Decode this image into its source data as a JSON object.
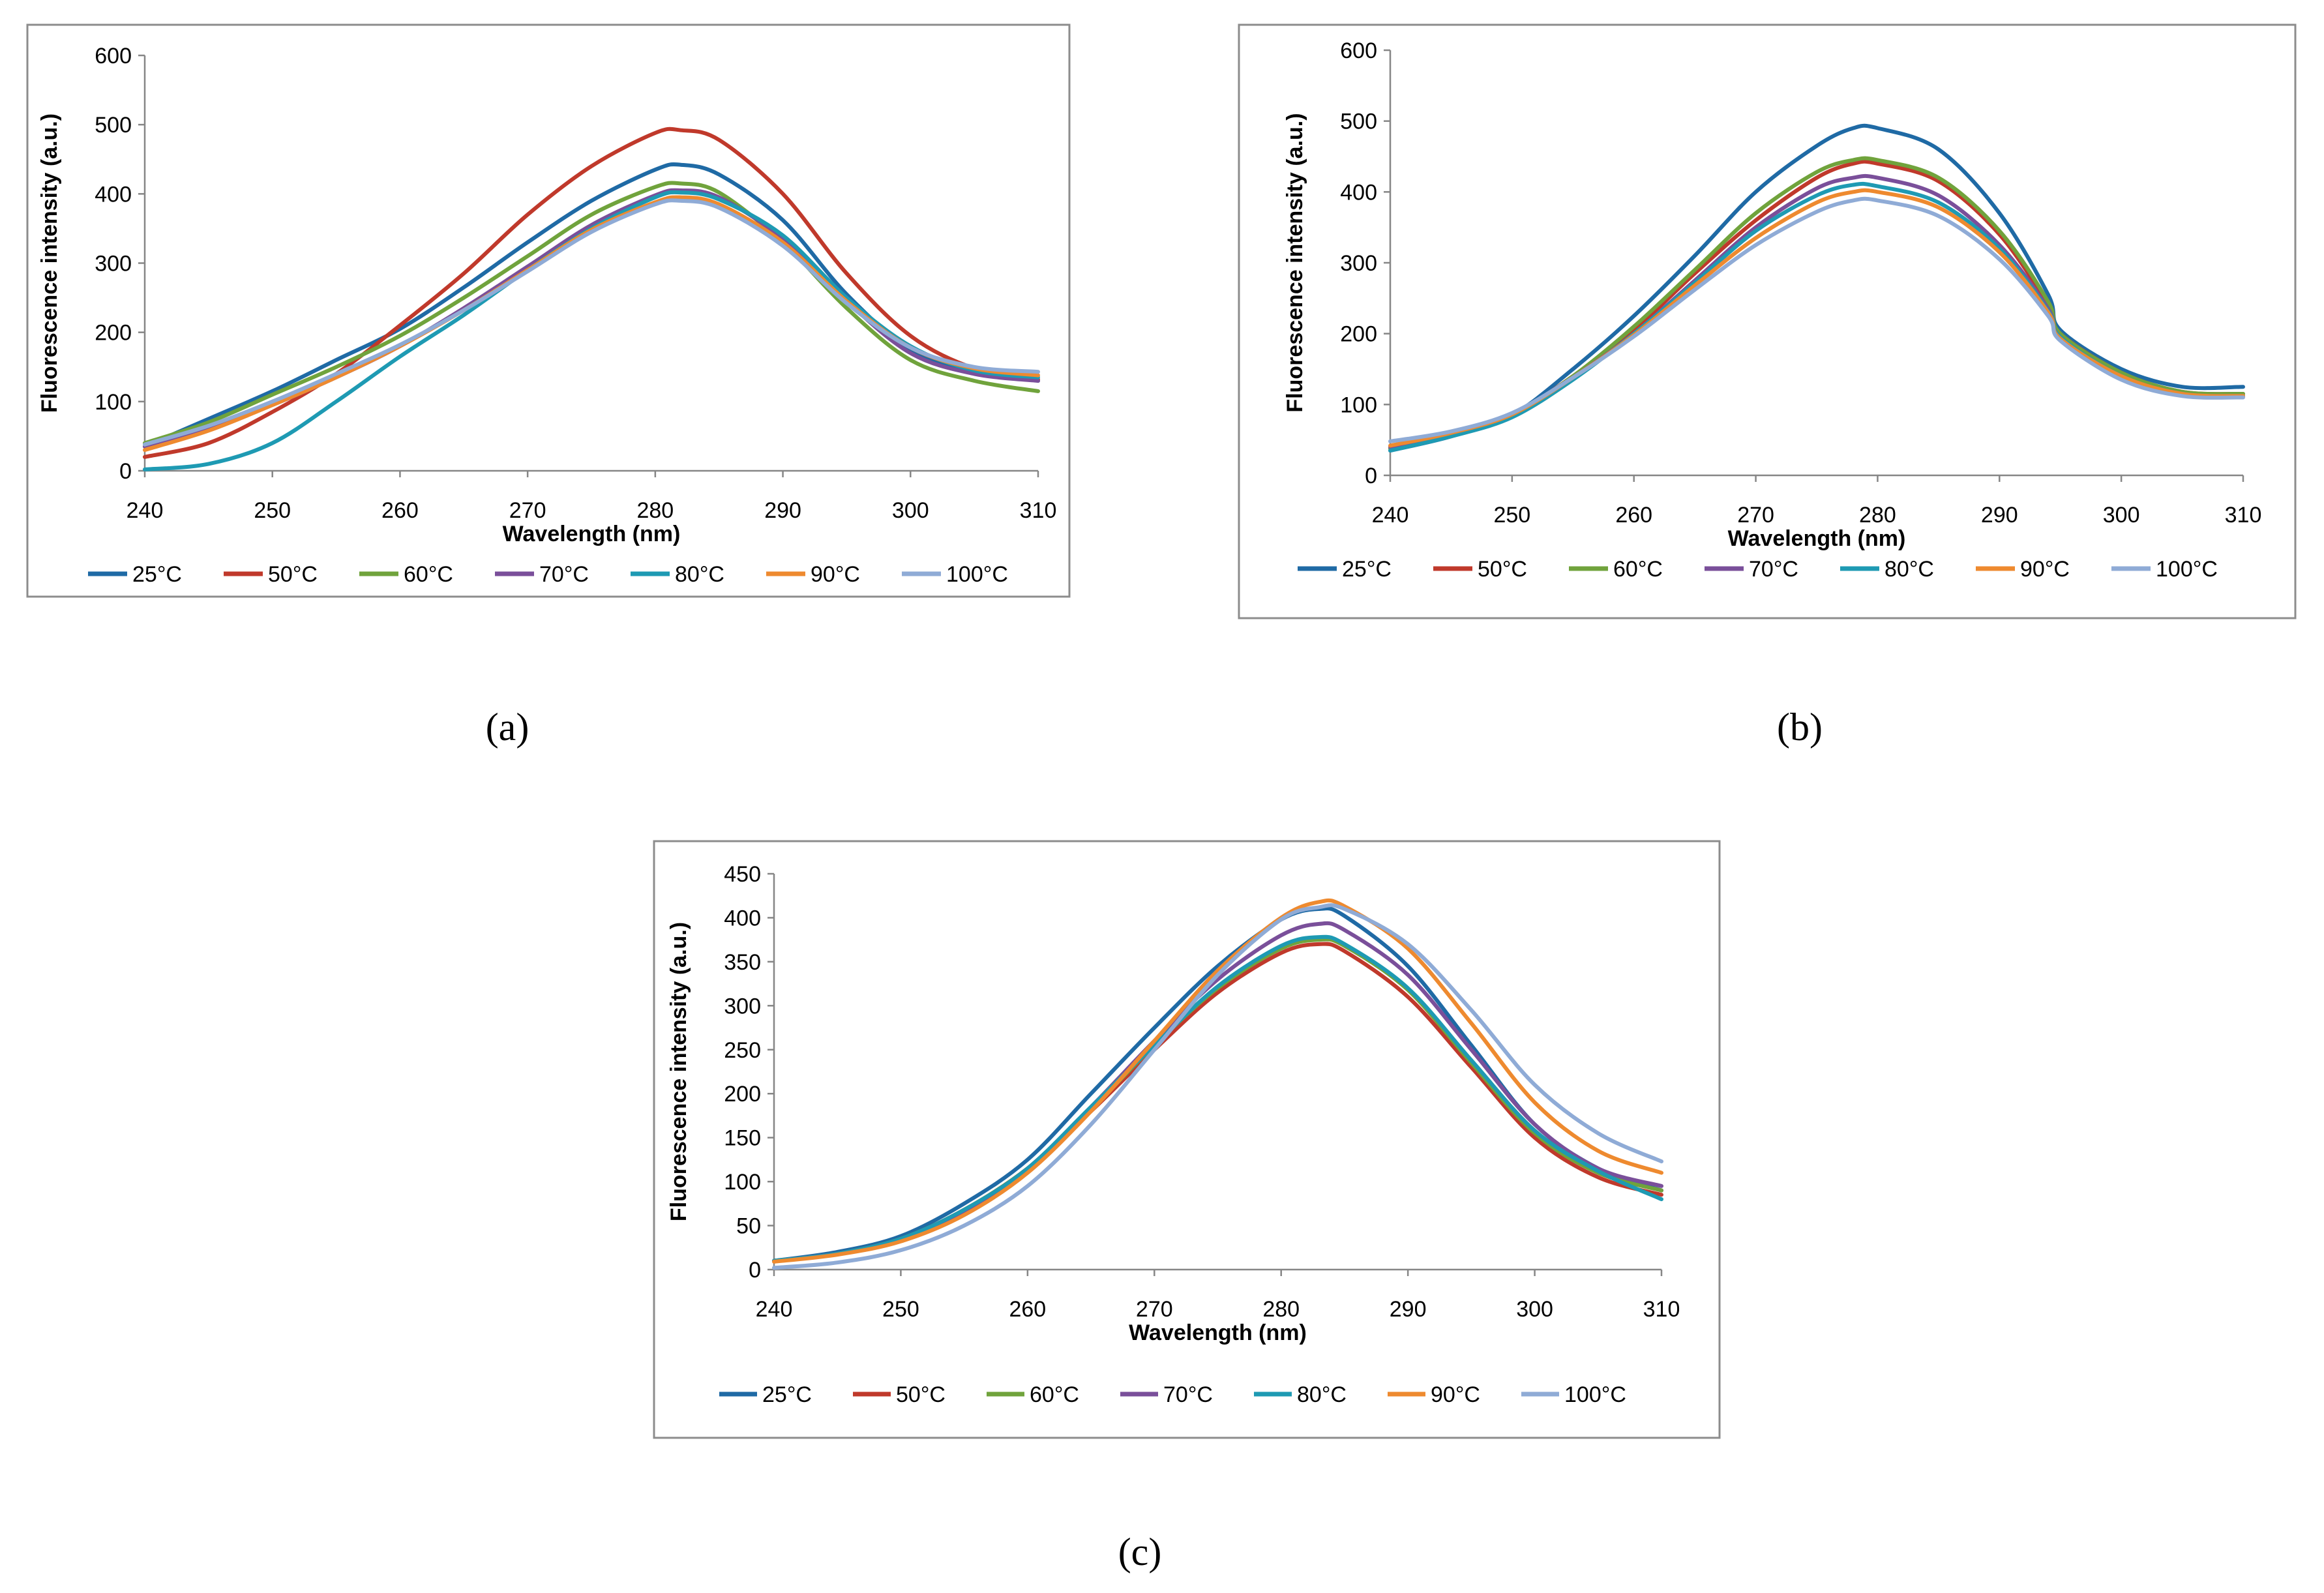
{
  "chart_data": [
    {
      "type": "line",
      "panel": "(a)",
      "xlabel": "Wavelength (nm)",
      "ylabel": "Fluorescence intensity (a.u.)",
      "xlim": [
        240,
        310
      ],
      "ylim": [
        0,
        600
      ],
      "xticks": [
        240,
        250,
        260,
        270,
        280,
        290,
        300,
        310
      ],
      "yticks": [
        0,
        100,
        200,
        300,
        400,
        500,
        600
      ],
      "legend_position": "bottom",
      "x": [
        240,
        245,
        250,
        255,
        260,
        265,
        270,
        275,
        280,
        282,
        285,
        290,
        295,
        300,
        305,
        310
      ],
      "series": [
        {
          "name": "25°C",
          "color": "#1f6aa5",
          "values": [
            35,
            75,
            115,
            160,
            205,
            265,
            330,
            390,
            435,
            442,
            428,
            362,
            255,
            175,
            145,
            130
          ]
        },
        {
          "name": "50°C",
          "color": "#c0392b",
          "values": [
            20,
            40,
            85,
            140,
            210,
            285,
            370,
            440,
            488,
            492,
            478,
            400,
            285,
            195,
            148,
            132
          ]
        },
        {
          "name": "60°C",
          "color": "#70a33c",
          "values": [
            40,
            70,
            110,
            150,
            195,
            250,
            310,
            370,
            410,
            415,
            402,
            330,
            235,
            160,
            130,
            115
          ]
        },
        {
          "name": "70°C",
          "color": "#7a4f9a",
          "values": [
            35,
            60,
            95,
            135,
            180,
            235,
            295,
            355,
            398,
            405,
            395,
            335,
            245,
            170,
            140,
            130
          ]
        },
        {
          "name": "80°C",
          "color": "#1e9ab3",
          "values": [
            2,
            10,
            40,
            100,
            165,
            225,
            290,
            350,
            395,
            402,
            392,
            340,
            250,
            180,
            145,
            135
          ]
        },
        {
          "name": "90°C",
          "color": "#ee8a2f",
          "values": [
            30,
            58,
            95,
            135,
            180,
            232,
            290,
            348,
            388,
            395,
            385,
            330,
            245,
            178,
            148,
            138
          ]
        },
        {
          "name": "100°C",
          "color": "#8fabd6",
          "values": [
            38,
            65,
            100,
            140,
            182,
            232,
            288,
            345,
            385,
            390,
            380,
            325,
            242,
            178,
            150,
            143
          ]
        }
      ]
    },
    {
      "type": "line",
      "panel": "(b)",
      "xlabel": "Wavelength (nm)",
      "ylabel": "Fluorescence intensity (a.u.)",
      "xlim": [
        240,
        310
      ],
      "ylim": [
        0,
        600
      ],
      "xticks": [
        240,
        250,
        260,
        270,
        280,
        290,
        300,
        310
      ],
      "yticks": [
        0,
        100,
        200,
        300,
        400,
        500,
        600
      ],
      "legend_position": "bottom",
      "x": [
        240,
        245,
        250,
        255,
        260,
        265,
        270,
        275,
        278,
        280,
        285,
        290,
        294,
        295,
        300,
        305,
        310
      ],
      "series": [
        {
          "name": "25°C",
          "color": "#1f6aa5",
          "values": [
            35,
            55,
            85,
            150,
            225,
            310,
            400,
            465,
            490,
            490,
            460,
            370,
            255,
            205,
            150,
            125,
            125
          ]
        },
        {
          "name": "50°C",
          "color": "#c0392b",
          "values": [
            38,
            58,
            85,
            140,
            205,
            285,
            360,
            420,
            440,
            440,
            415,
            340,
            240,
            200,
            145,
            118,
            115
          ]
        },
        {
          "name": "60°C",
          "color": "#70a33c",
          "values": [
            38,
            58,
            85,
            140,
            210,
            290,
            370,
            428,
            445,
            445,
            420,
            345,
            245,
            200,
            145,
            118,
            115
          ]
        },
        {
          "name": "70°C",
          "color": "#7a4f9a",
          "values": [
            40,
            58,
            85,
            138,
            200,
            275,
            350,
            405,
            420,
            420,
            395,
            325,
            235,
            195,
            140,
            115,
            112
          ]
        },
        {
          "name": "80°C",
          "color": "#1e9ab3",
          "values": [
            35,
            55,
            82,
            135,
            200,
            272,
            345,
            395,
            410,
            408,
            385,
            320,
            232,
            195,
            140,
            115,
            112
          ]
        },
        {
          "name": "90°C",
          "color": "#ee8a2f",
          "values": [
            42,
            60,
            86,
            138,
            198,
            268,
            335,
            385,
            400,
            400,
            378,
            315,
            230,
            193,
            140,
            115,
            112
          ]
        },
        {
          "name": "100°C",
          "color": "#8fabd6",
          "values": [
            48,
            62,
            88,
            138,
            196,
            262,
            325,
            372,
            388,
            388,
            366,
            305,
            225,
            190,
            135,
            112,
            110
          ]
        }
      ]
    },
    {
      "type": "line",
      "panel": "(c)",
      "xlabel": "Wavelength (nm)",
      "ylabel": "Fluorescence intensity (a.u.)",
      "xlim": [
        240,
        310
      ],
      "ylim": [
        0,
        450
      ],
      "xticks": [
        240,
        250,
        260,
        270,
        280,
        290,
        300,
        310
      ],
      "yticks": [
        0,
        50,
        100,
        150,
        200,
        250,
        300,
        350,
        400,
        450
      ],
      "legend_position": "bottom",
      "x": [
        240,
        245,
        250,
        255,
        260,
        265,
        270,
        275,
        280,
        283,
        285,
        290,
        295,
        300,
        305,
        310
      ],
      "series": [
        {
          "name": "25°C",
          "color": "#1f6aa5",
          "values": [
            10,
            20,
            38,
            75,
            125,
            200,
            275,
            345,
            398,
            410,
            402,
            345,
            255,
            165,
            115,
            90
          ]
        },
        {
          "name": "50°C",
          "color": "#c0392b",
          "values": [
            10,
            18,
            35,
            68,
            115,
            180,
            250,
            315,
            360,
            370,
            362,
            310,
            230,
            150,
            105,
            85
          ]
        },
        {
          "name": "60°C",
          "color": "#70a33c",
          "values": [
            10,
            18,
            35,
            68,
            115,
            182,
            255,
            320,
            365,
            375,
            368,
            318,
            235,
            155,
            110,
            90
          ]
        },
        {
          "name": "70°C",
          "color": "#7a4f9a",
          "values": [
            10,
            18,
            34,
            66,
            115,
            185,
            260,
            330,
            380,
            393,
            386,
            335,
            250,
            165,
            115,
            95
          ]
        },
        {
          "name": "80°C",
          "color": "#1e9ab3",
          "values": [
            10,
            18,
            35,
            68,
            115,
            185,
            255,
            322,
            368,
            378,
            370,
            320,
            238,
            158,
            112,
            80
          ]
        },
        {
          "name": "90°C",
          "color": "#ee8a2f",
          "values": [
            9,
            17,
            32,
            62,
            110,
            180,
            260,
            340,
            400,
            418,
            413,
            365,
            280,
            190,
            135,
            110
          ]
        },
        {
          "name": "100°C",
          "color": "#8fabd6",
          "values": [
            2,
            8,
            22,
            50,
            95,
            165,
            250,
            335,
            398,
            412,
            410,
            370,
            295,
            210,
            155,
            123
          ]
        }
      ]
    }
  ],
  "captions": [
    "(a)",
    "(b)",
    "(c)"
  ]
}
